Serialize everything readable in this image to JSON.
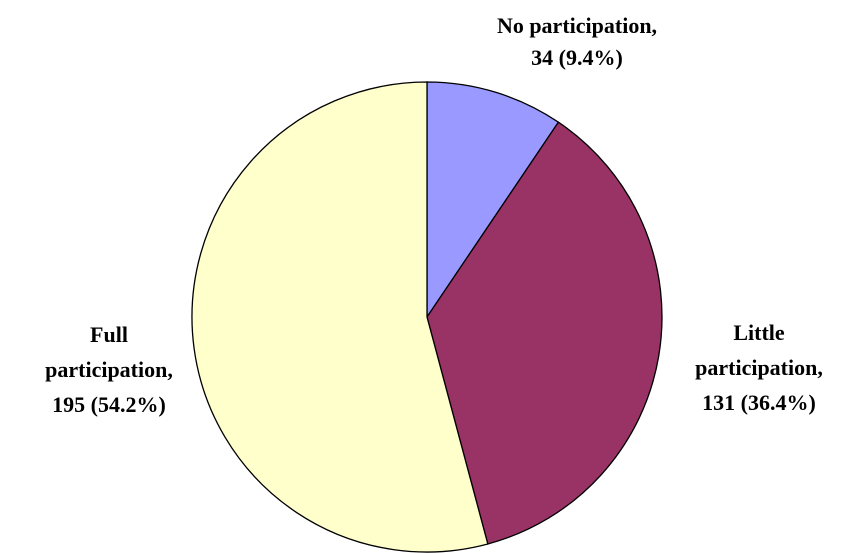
{
  "chart_data": {
    "type": "pie",
    "start_angle_deg": 0,
    "direction": "clockwise",
    "slices": [
      {
        "name": "No participation",
        "value": 34,
        "percent": "9.4%",
        "color": "#9999ff",
        "label_lines": [
          "No participation,",
          "34 (9.4%)"
        ]
      },
      {
        "name": "Little participation",
        "value": 131,
        "percent": "36.4%",
        "color": "#993366",
        "label_lines": [
          "Little",
          "participation,",
          "131 (36.4%)"
        ]
      },
      {
        "name": "Full participation",
        "value": 195,
        "percent": "54.2%",
        "color": "#ffffcc",
        "label_lines": [
          "Full",
          "participation,",
          "195 (54.2%)"
        ]
      }
    ]
  }
}
